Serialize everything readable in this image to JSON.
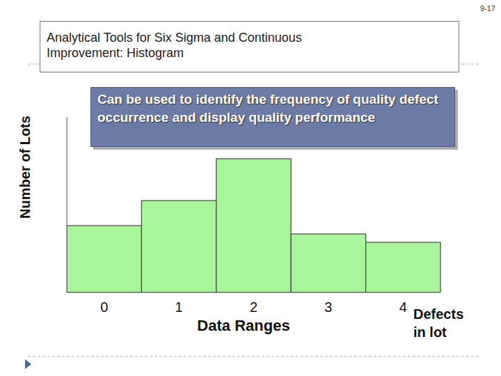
{
  "page_number": "9-17",
  "chart_data": {
    "type": "bar",
    "title": "Analytical Tools for Six Sigma and Continuous Improvement: Histogram",
    "ylabel": "Number of Lots",
    "xlabel": "Data Ranges",
    "annotations": [
      "Can be used to identify the frequency of quality defect occurrence and display quality performance",
      "Defects in lot"
    ],
    "categories": [
      "0",
      "1",
      "2",
      "3",
      "4"
    ],
    "values": [
      4,
      5.5,
      8,
      3.5,
      3
    ],
    "color": "#a8f59a",
    "ylim": [
      0,
      10.5
    ],
    "tick_labels": "x",
    "grid": false
  }
}
